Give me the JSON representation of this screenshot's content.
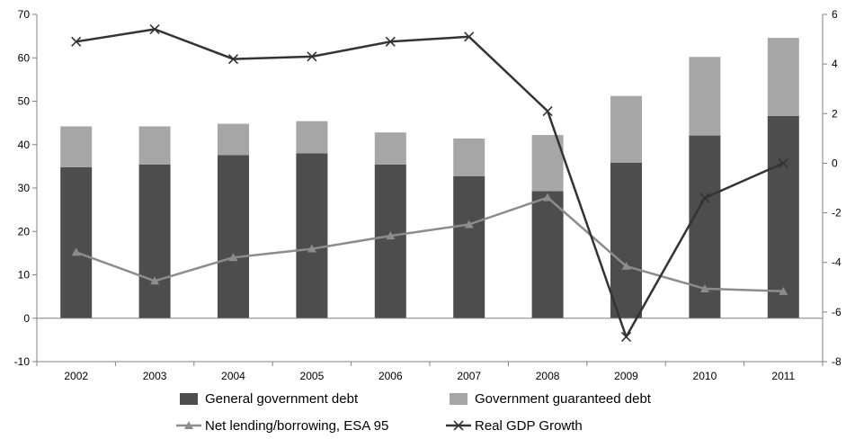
{
  "chart_data": {
    "type": "bar",
    "stacked": true,
    "categories": [
      "2002",
      "2003",
      "2004",
      "2005",
      "2006",
      "2007",
      "2008",
      "2009",
      "2010",
      "2011"
    ],
    "series": [
      {
        "name": "General government debt",
        "kind": "bar",
        "axis": "left",
        "color": "#4d4d4d",
        "values": [
          34.8,
          35.4,
          37.6,
          38.0,
          35.4,
          32.7,
          29.3,
          35.8,
          42.1,
          46.6
        ]
      },
      {
        "name": "Government guaranteed debt",
        "kind": "bar",
        "axis": "left",
        "color": "#a6a6a6",
        "values": [
          9.4,
          8.8,
          7.2,
          7.4,
          7.4,
          8.7,
          12.9,
          15.4,
          18.1,
          18.0
        ]
      },
      {
        "name": "Net lending/borrowing, ESA 95",
        "kind": "line",
        "marker": "triangle",
        "axis": "left",
        "color": "#8c8c8c",
        "values": [
          15.2,
          8.6,
          14.0,
          16.0,
          19.0,
          21.6,
          27.8,
          12.0,
          6.8,
          6.2
        ]
      },
      {
        "name": "Real GDP Growth",
        "kind": "line",
        "marker": "x",
        "axis": "right",
        "color": "#333333",
        "values": [
          4.9,
          5.4,
          4.2,
          4.3,
          4.9,
          5.1,
          2.1,
          -7.0,
          -1.4,
          0.0
        ]
      }
    ],
    "left_axis": {
      "min": -10,
      "max": 70,
      "ticks": [
        -10,
        0,
        10,
        20,
        30,
        40,
        50,
        60,
        70
      ]
    },
    "right_axis": {
      "min": -8,
      "max": 6,
      "ticks": [
        -8,
        -6,
        -4,
        -2,
        0,
        2,
        4,
        6
      ]
    },
    "grid": false,
    "legend_position": "bottom"
  }
}
